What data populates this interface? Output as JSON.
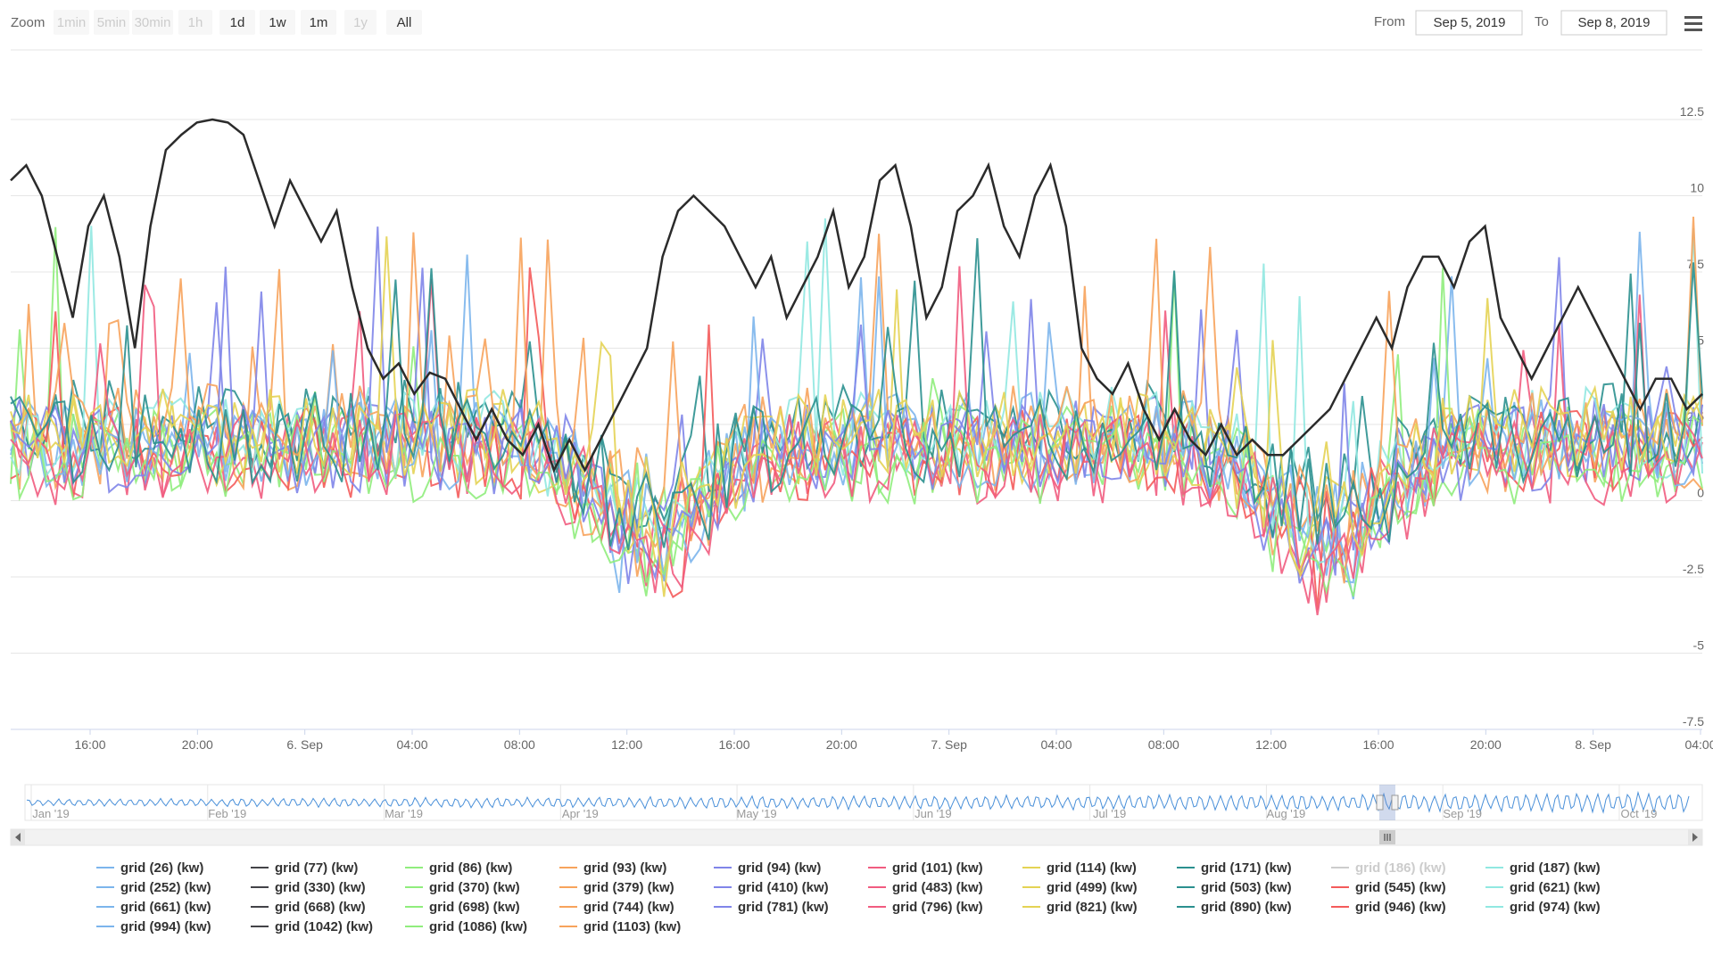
{
  "toolbar": {
    "zoom_label": "Zoom",
    "zoom_buttons": [
      {
        "label": "1min",
        "enabled": false
      },
      {
        "label": "5min",
        "enabled": false
      },
      {
        "label": "30min",
        "enabled": false
      },
      {
        "label": "1h",
        "enabled": false
      },
      {
        "label": "1d",
        "enabled": true
      },
      {
        "label": "1w",
        "enabled": true
      },
      {
        "label": "1m",
        "enabled": true
      },
      {
        "label": "1y",
        "enabled": false
      },
      {
        "label": "All",
        "enabled": true
      }
    ],
    "from_label": "From",
    "from_value": "Sep 5, 2019",
    "to_label": "To",
    "to_value": "Sep 8, 2019",
    "menu_icon": "hamburger-menu-icon"
  },
  "chart_data": {
    "type": "line",
    "y_ticks": [
      "12.5",
      "10",
      "7.5",
      "5",
      "2.5",
      "0",
      "-2.5",
      "-5",
      "-7.5"
    ],
    "y_tick_values": [
      12.5,
      10,
      7.5,
      5,
      2.5,
      0,
      -2.5,
      -5,
      -7.5
    ],
    "ylim": [
      -7.5,
      12.5
    ],
    "x_ticks": [
      "16:00",
      "20:00",
      "6. Sep",
      "04:00",
      "08:00",
      "12:00",
      "16:00",
      "20:00",
      "7. Sep",
      "04:00",
      "08:00",
      "12:00",
      "16:00",
      "20:00",
      "8. Sep",
      "04:00"
    ],
    "grid": true,
    "legend_position": "bottom",
    "dark_series": {
      "name": "grid (1042) (kw)",
      "color": "#2b2b2b",
      "values": [
        10.5,
        11.0,
        10.0,
        8.0,
        6.0,
        9.0,
        10.0,
        8.0,
        5.0,
        9.0,
        11.5,
        12.0,
        12.4,
        12.5,
        12.4,
        12.0,
        10.5,
        9.0,
        10.5,
        9.5,
        8.5,
        9.5,
        7.0,
        5.0,
        4.0,
        4.5,
        3.5,
        4.2,
        4.0,
        3.0,
        2.0,
        3.0,
        2.0,
        1.5,
        2.5,
        1.0,
        2.0,
        1.0,
        2.0,
        3.0,
        4.0,
        5.0,
        8.0,
        9.5,
        10.0,
        9.5,
        9.0,
        8.0,
        7.0,
        8.0,
        6.0,
        7.0,
        8.0,
        9.5,
        7.0,
        8.0,
        10.5,
        11.0,
        9.0,
        6.0,
        7.0,
        9.5,
        10.0,
        11.0,
        9.0,
        8.0,
        10.0,
        11.0,
        9.0,
        5.0,
        4.0,
        3.5,
        4.5,
        3.0,
        2.0,
        3.0,
        2.0,
        1.5,
        2.5,
        1.5,
        2.0,
        1.5,
        1.5,
        2.0,
        2.5,
        3.0,
        4.0,
        5.0,
        6.0,
        5.0,
        7.0,
        8.0,
        8.0,
        7.0,
        8.5,
        9.0,
        6.0,
        5.0,
        4.0,
        5.0,
        6.0,
        7.0,
        6.0,
        5.0,
        4.0,
        3.0,
        4.0,
        4.0,
        3.0,
        3.5
      ]
    },
    "noise_colors": [
      "#7cb5ec",
      "#90ed7d",
      "#f7a35c",
      "#8085e9",
      "#f15c80",
      "#e4d354",
      "#2b908f",
      "#f45b5b",
      "#91e8e1",
      "#7cb5ec",
      "#f7a35c",
      "#90ed7d",
      "#8085e9",
      "#f15c80",
      "#e4d354",
      "#2b908f"
    ],
    "legend_items": [
      {
        "label": "grid (26) (kw)",
        "color": "#7cb5ec",
        "visible": true
      },
      {
        "label": "grid (77) (kw)",
        "color": "#434348",
        "visible": true
      },
      {
        "label": "grid (86) (kw)",
        "color": "#90ed7d",
        "visible": true
      },
      {
        "label": "grid (93) (kw)",
        "color": "#f7a35c",
        "visible": true
      },
      {
        "label": "grid (94) (kw)",
        "color": "#8085e9",
        "visible": true
      },
      {
        "label": "grid (101) (kw)",
        "color": "#f15c80",
        "visible": true
      },
      {
        "label": "grid (114) (kw)",
        "color": "#e4d354",
        "visible": true
      },
      {
        "label": "grid (171) (kw)",
        "color": "#2b908f",
        "visible": true
      },
      {
        "label": "grid (186) (kw)",
        "color": "#cccccc",
        "visible": false
      },
      {
        "label": "grid (187) (kw)",
        "color": "#91e8e1",
        "visible": true
      },
      {
        "label": "grid (252) (kw)",
        "color": "#7cb5ec",
        "visible": true
      },
      {
        "label": "grid (330) (kw)",
        "color": "#434348",
        "visible": true
      },
      {
        "label": "grid (370) (kw)",
        "color": "#90ed7d",
        "visible": true
      },
      {
        "label": "grid (379) (kw)",
        "color": "#f7a35c",
        "visible": true
      },
      {
        "label": "grid (410) (kw)",
        "color": "#8085e9",
        "visible": true
      },
      {
        "label": "grid (483) (kw)",
        "color": "#f15c80",
        "visible": true
      },
      {
        "label": "grid (499) (kw)",
        "color": "#e4d354",
        "visible": true
      },
      {
        "label": "grid (503) (kw)",
        "color": "#2b908f",
        "visible": true
      },
      {
        "label": "grid (545) (kw)",
        "color": "#f45b5b",
        "visible": true
      },
      {
        "label": "grid (621) (kw)",
        "color": "#91e8e1",
        "visible": true
      },
      {
        "label": "grid (661) (kw)",
        "color": "#7cb5ec",
        "visible": true
      },
      {
        "label": "grid (668) (kw)",
        "color": "#434348",
        "visible": true
      },
      {
        "label": "grid (698) (kw)",
        "color": "#90ed7d",
        "visible": true
      },
      {
        "label": "grid (744) (kw)",
        "color": "#f7a35c",
        "visible": true
      },
      {
        "label": "grid (781) (kw)",
        "color": "#8085e9",
        "visible": true
      },
      {
        "label": "grid (796) (kw)",
        "color": "#f15c80",
        "visible": true
      },
      {
        "label": "grid (821) (kw)",
        "color": "#e4d354",
        "visible": true
      },
      {
        "label": "grid (890) (kw)",
        "color": "#2b908f",
        "visible": true
      },
      {
        "label": "grid (946) (kw)",
        "color": "#f45b5b",
        "visible": true
      },
      {
        "label": "grid (974) (kw)",
        "color": "#91e8e1",
        "visible": true
      },
      {
        "label": "grid (994) (kw)",
        "color": "#7cb5ec",
        "visible": true
      },
      {
        "label": "grid (1042) (kw)",
        "color": "#434348",
        "visible": true
      },
      {
        "label": "grid (1086) (kw)",
        "color": "#90ed7d",
        "visible": true
      },
      {
        "label": "grid (1103) (kw)",
        "color": "#f7a35c",
        "visible": true
      }
    ]
  },
  "navigator": {
    "labels": [
      "Jan '19",
      "Feb '19",
      "Mar '19",
      "Apr '19",
      "May '19",
      "Jun '19",
      "Jul '19",
      "Aug '19",
      "Sep '19",
      "Oct '19"
    ],
    "line_color": "#4a90d9",
    "left_arrow": "scroll-left-arrow-icon",
    "right_arrow": "scroll-right-arrow-icon"
  }
}
